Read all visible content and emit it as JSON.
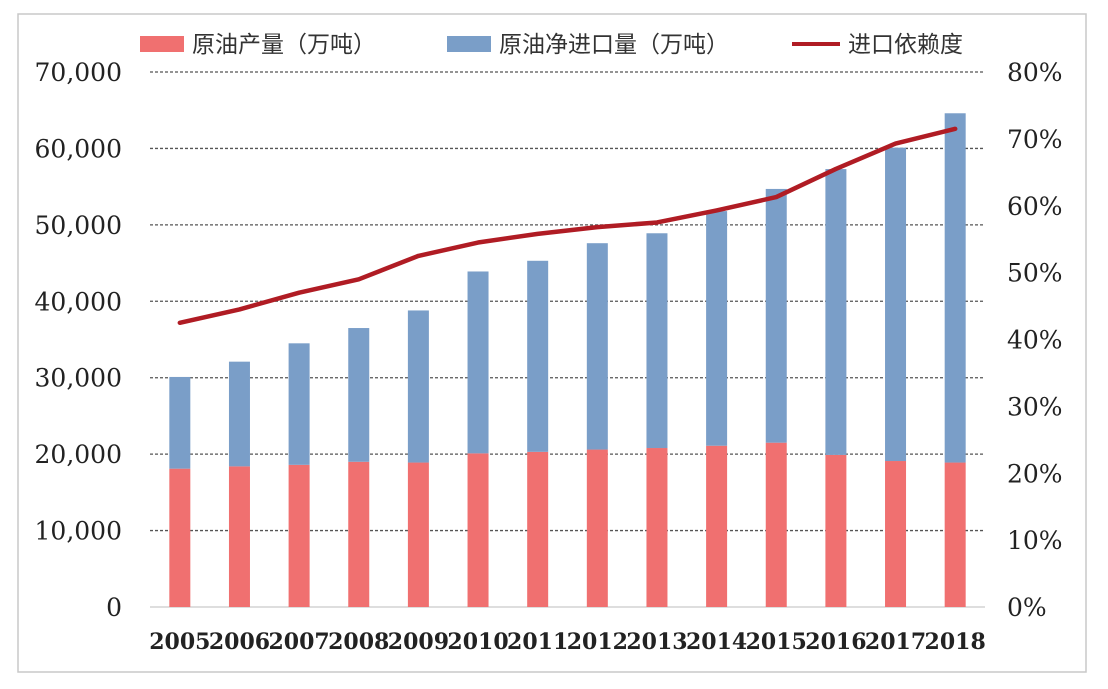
{
  "chart_data": {
    "type": "bar",
    "stacked": true,
    "categories": [
      "2005",
      "2006",
      "2007",
      "2008",
      "2009",
      "2010",
      "2011",
      "2012",
      "2013",
      "2014",
      "2015",
      "2016",
      "2017",
      "2018"
    ],
    "series": [
      {
        "name": "原油产量（万吨）",
        "type": "bar",
        "axis": "left",
        "color": "#f07070",
        "values": [
          18100,
          18400,
          18600,
          19000,
          18900,
          20100,
          20300,
          20600,
          20800,
          21100,
          21500,
          19900,
          19100,
          18900
        ]
      },
      {
        "name": "原油净进口量（万吨）",
        "type": "bar",
        "axis": "left",
        "color": "#7a9ec8",
        "values": [
          12000,
          13700,
          15900,
          17500,
          19900,
          23800,
          25000,
          27000,
          28100,
          30700,
          33200,
          37400,
          41000,
          45700
        ]
      },
      {
        "name": "进口依赖度",
        "type": "line",
        "axis": "right",
        "color": "#b01c24",
        "values": [
          42.5,
          44.5,
          47,
          49,
          52.5,
          54.5,
          55.8,
          56.8,
          57.5,
          59.3,
          61.3,
          65.5,
          69.3,
          71.5
        ]
      }
    ],
    "y_left": {
      "ylim": [
        0,
        70000
      ],
      "ticks": [
        "0",
        "10,000",
        "20,000",
        "30,000",
        "40,000",
        "50,000",
        "60,000",
        "70,000"
      ]
    },
    "y_right": {
      "ylim": [
        0,
        80
      ],
      "ticks": [
        "0%",
        "10%",
        "20%",
        "30%",
        "40%",
        "50%",
        "60%",
        "70%",
        "80%"
      ]
    },
    "grid": "horizontal-dashed",
    "legend_position": "top"
  }
}
